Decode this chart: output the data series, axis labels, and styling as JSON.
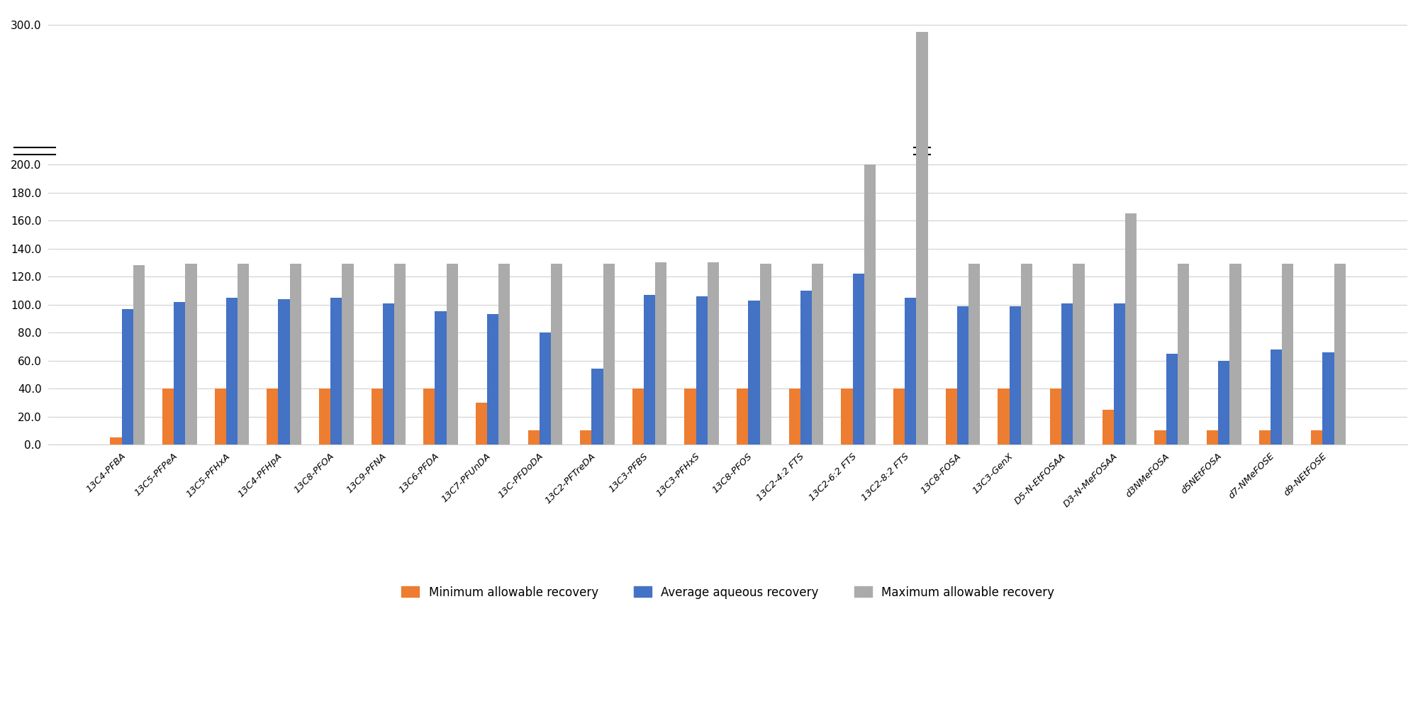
{
  "categories": [
    "13C4-PFBA",
    "13C5-PFPeA",
    "13C5-PFHxA",
    "13C4-PFHpA",
    "13C8-PFOA",
    "13C9-PFNA",
    "13C6-PFDA",
    "13C7-PFUnDA",
    "13C-PFDoDA",
    "13C2-PFTreDA",
    "13C3-PFBS",
    "13C3-PFHxS",
    "13C8-PFOS",
    "13C2-4:2 FTS",
    "13C2-6:2 FTS",
    "13C2-8:2 FTS",
    "13C8-FOSA",
    "13C3-GenX",
    "D5-N-EtFOSAA",
    "D3-N-MeFOSAA",
    "d3NMeFOSA",
    "d5NEtFOSA",
    "d7-NMeFOSE",
    "d9-NEtFOSE"
  ],
  "min_recovery": [
    5,
    40,
    40,
    40,
    40,
    40,
    40,
    30,
    10,
    10,
    40,
    40,
    40,
    40,
    40,
    40,
    40,
    40,
    40,
    25,
    10,
    10,
    10,
    10
  ],
  "avg_recovery": [
    97,
    102,
    105,
    104,
    105,
    101,
    95,
    93,
    80,
    54,
    107,
    106,
    103,
    110,
    122,
    105,
    99,
    99,
    101,
    101,
    65,
    60,
    68,
    66
  ],
  "max_recovery": [
    128,
    129,
    129,
    129,
    129,
    129,
    129,
    129,
    129,
    129,
    130,
    130,
    129,
    129,
    200,
    295,
    129,
    129,
    129,
    165,
    129,
    129,
    129,
    129
  ],
  "bar_colors": {
    "min": "#ED7D31",
    "avg": "#4472C4",
    "max": "#ABABAB"
  },
  "ylim": [
    0,
    310
  ],
  "yticks": [
    0,
    20,
    40,
    60,
    80,
    100,
    120,
    140,
    160,
    180,
    200,
    300
  ],
  "ytick_labels": [
    "0.0",
    "20.0",
    "40.0",
    "60.0",
    "80.0",
    "100.0",
    "120.0",
    "140.0",
    "160.0",
    "180.0",
    "200.0",
    "300.0"
  ],
  "legend_labels": [
    "Minimum allowable recovery",
    "Average aqueous recovery",
    "Maximum allowable recovery"
  ],
  "background_color": "#FFFFFF",
  "plot_background": "#FFFFFF",
  "grid_color": "#D0D0D0"
}
